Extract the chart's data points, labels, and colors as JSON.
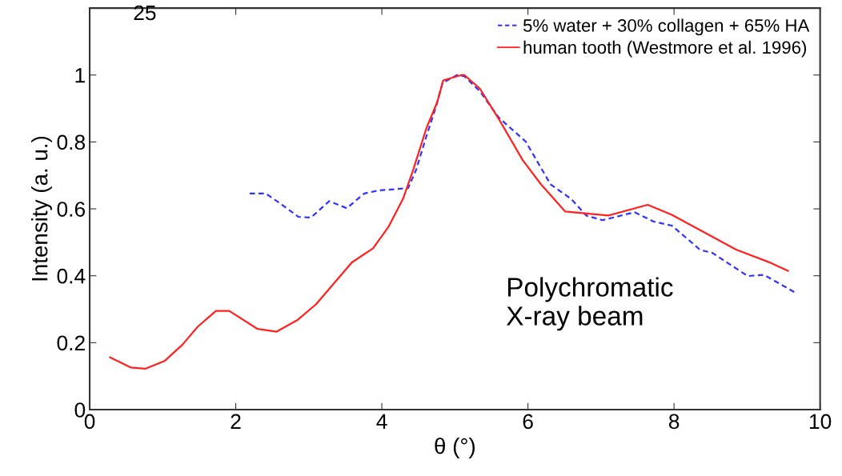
{
  "chart_data": {
    "type": "line",
    "xlabel": "θ (°)",
    "ylabel": "Intensity (a. u.)",
    "xlim": [
      0,
      10
    ],
    "xticks": [
      0,
      2,
      4,
      6,
      8,
      10
    ],
    "ylim": [
      0,
      1.2
    ],
    "yticks": [
      0,
      0.2,
      0.4,
      0.6,
      0.8,
      1
    ],
    "grid": false,
    "legend": "top right",
    "marker": "none",
    "annotations": [
      "25",
      "Polychromatic\nX-ray beam"
    ],
    "series": [
      {
        "name": "5% water + 30% collagen + 65% HA",
        "color": "#3333ff",
        "line_style": "dashed",
        "x": [
          2.19,
          2.41,
          2.57,
          2.86,
          3.03,
          3.28,
          3.52,
          3.76,
          3.96,
          4.36,
          4.47,
          4.61,
          4.74,
          4.83,
          5.03,
          5.13,
          5.34,
          5.6,
          5.97,
          6.31,
          6.59,
          6.8,
          7.02,
          7.46,
          7.72,
          7.97,
          8.36,
          8.52,
          9.01,
          9.23,
          9.65
        ],
        "values": [
          0.646,
          0.646,
          0.622,
          0.576,
          0.574,
          0.623,
          0.602,
          0.646,
          0.655,
          0.662,
          0.717,
          0.817,
          0.904,
          0.976,
          1.0,
          0.996,
          0.952,
          0.873,
          0.801,
          0.673,
          0.63,
          0.58,
          0.566,
          0.59,
          0.562,
          0.55,
          0.477,
          0.469,
          0.399,
          0.403,
          0.351
        ]
      },
      {
        "name": "human tooth (Westmore et al. 1996)",
        "color": "#ff2020",
        "line_style": "solid",
        "x": [
          0.28,
          0.56,
          0.76,
          1.03,
          1.27,
          1.48,
          1.73,
          1.91,
          2.3,
          2.56,
          2.84,
          3.1,
          3.32,
          3.59,
          3.88,
          4.09,
          4.29,
          4.43,
          4.61,
          4.76,
          4.84,
          5.09,
          5.13,
          5.34,
          5.6,
          5.93,
          6.18,
          6.51,
          7.1,
          7.64,
          7.97,
          8.41,
          8.85,
          9.32,
          9.56
        ],
        "values": [
          0.156,
          0.126,
          0.122,
          0.146,
          0.194,
          0.248,
          0.295,
          0.295,
          0.241,
          0.233,
          0.267,
          0.315,
          0.371,
          0.44,
          0.482,
          0.546,
          0.63,
          0.717,
          0.841,
          0.92,
          0.984,
          1.0,
          1.0,
          0.96,
          0.869,
          0.745,
          0.673,
          0.592,
          0.58,
          0.612,
          0.582,
          0.53,
          0.478,
          0.439,
          0.415
        ]
      }
    ]
  }
}
